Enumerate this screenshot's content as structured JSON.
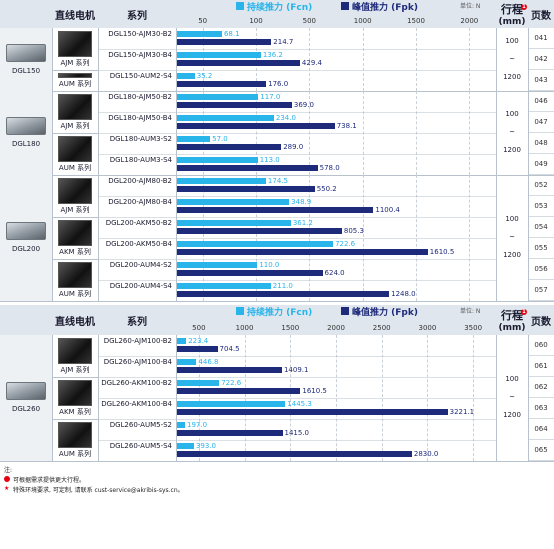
{
  "headers": {
    "direct_motor": "直线电机",
    "series": "系列",
    "continuous": "持续推力 (Fcn)",
    "peak": "峰值推力 (Fpk)",
    "unit": "单位: N",
    "stroke": "行程",
    "stroke_unit": "(mm)",
    "pages": "页数"
  },
  "colors": {
    "continuous": "#29b4ea",
    "peak": "#1e2a7a",
    "header_bg": "#dfe6ee",
    "group_bg": "#eef1f4"
  },
  "stroke": {
    "min": "100",
    "tilde": "~",
    "max": "1200"
  },
  "notes": {
    "prefix": "注:",
    "note1": "可根据需求提供更大行程。",
    "note2": "特殊环境要求, 可定制, 请联系 cust-service@akribis-sys.cn。"
  },
  "chart_data": [
    {
      "type": "bar",
      "axis": {
        "ticks": [
          50,
          100,
          500,
          1000,
          1500,
          2000
        ]
      },
      "groups": [
        {
          "stage": "DGL150",
          "series": [
            {
              "label": "AJM 系列",
              "rows": [
                0,
                1
              ]
            },
            {
              "label": "AUM 系列",
              "rows": [
                2
              ]
            }
          ],
          "rows": [
            {
              "model": "DGL150-AJM30-B2",
              "continuous": 68.1,
              "peak": 214.7,
              "page": "041"
            },
            {
              "model": "DGL150-AJM30-B4",
              "continuous": 136.2,
              "peak": 429.4,
              "page": "042"
            },
            {
              "model": "DGL150-AUM2-S4",
              "continuous": 35.2,
              "peak": 176.0,
              "page": "043"
            }
          ]
        },
        {
          "stage": "DGL180",
          "series": [
            {
              "label": "AJM 系列",
              "rows": [
                0,
                1
              ]
            },
            {
              "label": "AUM 系列",
              "rows": [
                2,
                3
              ]
            }
          ],
          "rows": [
            {
              "model": "DGL180-AJM50-B2",
              "continuous": 117.0,
              "peak": 369.0,
              "page": "046"
            },
            {
              "model": "DGL180-AJM50-B4",
              "continuous": 234.0,
              "peak": 738.1,
              "page": "047"
            },
            {
              "model": "DGL180-AUM3-S2",
              "continuous": 57.0,
              "peak": 289.0,
              "page": "048"
            },
            {
              "model": "DGL180-AUM3-S4",
              "continuous": 113.0,
              "peak": 578.0,
              "page": "049"
            }
          ]
        },
        {
          "stage": "DGL200",
          "series": [
            {
              "label": "AJM 系列",
              "rows": [
                0,
                1
              ]
            },
            {
              "label": "AKM 系列",
              "rows": [
                2,
                3
              ]
            },
            {
              "label": "AUM 系列",
              "rows": [
                4,
                5
              ]
            }
          ],
          "rows": [
            {
              "model": "DGL200-AJM80-B2",
              "continuous": 174.5,
              "peak": 550.2,
              "page": "052"
            },
            {
              "model": "DGL200-AJM80-B4",
              "continuous": 348.9,
              "peak": 1100.4,
              "page": "053"
            },
            {
              "model": "DGL200-AKM50-B2",
              "continuous": 361.2,
              "peak": 805.3,
              "page": "054"
            },
            {
              "model": "DGL200-AKM50-B4",
              "continuous": 722.6,
              "peak": 1610.5,
              "page": "055"
            },
            {
              "model": "DGL200-AUM4-S2",
              "continuous": 110.0,
              "peak": 624.0,
              "page": "056"
            },
            {
              "model": "DGL200-AUM4-S4",
              "continuous": 211.0,
              "peak": 1248.0,
              "page": "057"
            }
          ]
        }
      ]
    },
    {
      "type": "bar",
      "axis": {
        "ticks": [
          500,
          1000,
          1500,
          2000,
          2500,
          3000,
          3500
        ]
      },
      "groups": [
        {
          "stage": "DGL260",
          "series": [
            {
              "label": "AJM 系列",
              "rows": [
                0,
                1
              ]
            },
            {
              "label": "AKM 系列",
              "rows": [
                2,
                3
              ]
            },
            {
              "label": "AUM 系列",
              "rows": [
                4,
                5
              ]
            }
          ],
          "rows": [
            {
              "model": "DGL260-AJM100-B2",
              "continuous": 223.4,
              "peak": 704.5,
              "page": "060"
            },
            {
              "model": "DGL260-AJM100-B4",
              "continuous": 446.8,
              "peak": 1409.1,
              "page": "061"
            },
            {
              "model": "DGL260-AKM100-B2",
              "continuous": 722.6,
              "peak": 1610.5,
              "page": "062"
            },
            {
              "model": "DGL260-AKM100-B4",
              "continuous": 1445.3,
              "peak": 3221.1,
              "page": "063"
            },
            {
              "model": "DGL260-AUM5-S2",
              "continuous": 197.0,
              "peak": 1415.0,
              "page": "064"
            },
            {
              "model": "DGL260-AUM5-S4",
              "continuous": 393.0,
              "peak": 2830.0,
              "page": "065"
            }
          ]
        }
      ]
    }
  ]
}
